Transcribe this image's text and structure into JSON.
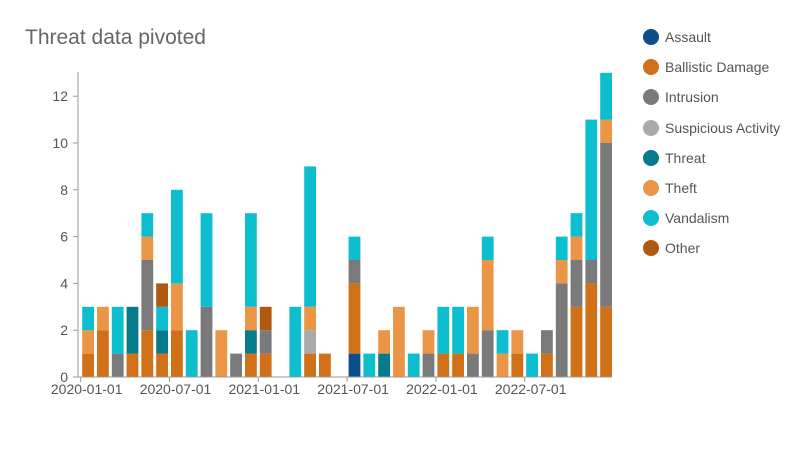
{
  "chart_data": {
    "type": "bar",
    "stacked": true,
    "title": "Threat data pivoted",
    "xlabel": "",
    "ylabel": "",
    "ylim": [
      0,
      13
    ],
    "yticks": [
      0,
      2,
      4,
      6,
      8,
      10,
      12
    ],
    "x_tick_labels": [
      "2020-01-01",
      "2020-07-01",
      "2021-01-01",
      "2021-07-01",
      "2022-01-01",
      "2022-07-01"
    ],
    "x_tick_months": [
      0,
      6,
      12,
      18,
      24,
      30
    ],
    "grid": false,
    "legend_position": "right",
    "categories": [
      "2020-01",
      "2020-02",
      "2020-03",
      "2020-04",
      "2020-05",
      "2020-06",
      "2020-07",
      "2020-08",
      "2020-09",
      "2020-10",
      "2020-11",
      "2020-12",
      "2021-01",
      "2021-02",
      "2021-03",
      "2021-04",
      "2021-05",
      "2021-06",
      "2021-07",
      "2021-08",
      "2021-09",
      "2021-10",
      "2021-11",
      "2021-12",
      "2022-01",
      "2022-02",
      "2022-03",
      "2022-04",
      "2022-05",
      "2022-06",
      "2022-07",
      "2022-08",
      "2022-09",
      "2022-10",
      "2022-11",
      "2022-12"
    ],
    "series": [
      {
        "name": "Assault",
        "color": "#0b4f8a",
        "values": [
          0,
          0,
          0,
          0,
          0,
          0,
          0,
          0,
          0,
          0,
          0,
          0,
          0,
          0,
          0,
          0,
          0,
          0,
          1,
          0,
          0,
          0,
          0,
          0,
          0,
          0,
          0,
          0,
          0,
          0,
          0,
          0,
          0,
          0,
          0,
          0
        ]
      },
      {
        "name": "Ballistic Damage",
        "color": "#d07019",
        "values": [
          1,
          2,
          0,
          1,
          2,
          1,
          2,
          0,
          0,
          0,
          0,
          1,
          1,
          0,
          0,
          1,
          1,
          0,
          3,
          0,
          0,
          0,
          0,
          0,
          1,
          1,
          0,
          0,
          0,
          1,
          0,
          1,
          0,
          3,
          4,
          3
        ]
      },
      {
        "name": "Intrusion",
        "color": "#7a7a7a",
        "values": [
          0,
          0,
          1,
          0,
          3,
          0,
          0,
          0,
          3,
          0,
          1,
          0,
          1,
          0,
          0,
          0,
          0,
          0,
          1,
          0,
          0,
          0,
          0,
          1,
          0,
          0,
          1,
          2,
          0,
          0,
          0,
          1,
          4,
          2,
          1,
          7
        ]
      },
      {
        "name": "Suspicious Activity",
        "color": "#aaaaaa",
        "values": [
          0,
          0,
          0,
          0,
          0,
          0,
          0,
          0,
          0,
          0,
          0,
          0,
          0,
          0,
          0,
          1,
          0,
          0,
          0,
          0,
          0,
          0,
          0,
          0,
          0,
          0,
          0,
          0,
          0,
          0,
          0,
          0,
          0,
          0,
          0,
          0
        ]
      },
      {
        "name": "Threat",
        "color": "#077a8c",
        "values": [
          0,
          0,
          0,
          2,
          0,
          1,
          0,
          0,
          0,
          0,
          0,
          1,
          0,
          0,
          0,
          0,
          0,
          0,
          0,
          0,
          1,
          0,
          0,
          0,
          0,
          0,
          0,
          0,
          0,
          0,
          0,
          0,
          0,
          0,
          0,
          0
        ]
      },
      {
        "name": "Theft",
        "color": "#eb9547",
        "values": [
          1,
          1,
          0,
          0,
          1,
          0,
          2,
          0,
          0,
          2,
          0,
          1,
          0,
          0,
          0,
          1,
          0,
          0,
          0,
          0,
          1,
          3,
          0,
          1,
          0,
          0,
          2,
          3,
          1,
          1,
          0,
          0,
          1,
          1,
          0,
          1
        ]
      },
      {
        "name": "Vandalism",
        "color": "#0dbecf",
        "values": [
          1,
          0,
          2,
          0,
          1,
          1,
          4,
          2,
          4,
          0,
          0,
          4,
          0,
          0,
          3,
          6,
          0,
          0,
          1,
          1,
          0,
          0,
          1,
          0,
          2,
          2,
          0,
          1,
          1,
          0,
          1,
          0,
          1,
          1,
          6,
          2
        ]
      },
      {
        "name": "Other",
        "color": "#b0580f",
        "values": [
          0,
          0,
          0,
          0,
          0,
          1,
          0,
          0,
          0,
          0,
          0,
          0,
          1,
          0,
          0,
          0,
          0,
          0,
          0,
          0,
          0,
          0,
          0,
          0,
          0,
          0,
          0,
          0,
          0,
          0,
          0,
          0,
          0,
          0,
          0,
          0
        ]
      }
    ]
  }
}
